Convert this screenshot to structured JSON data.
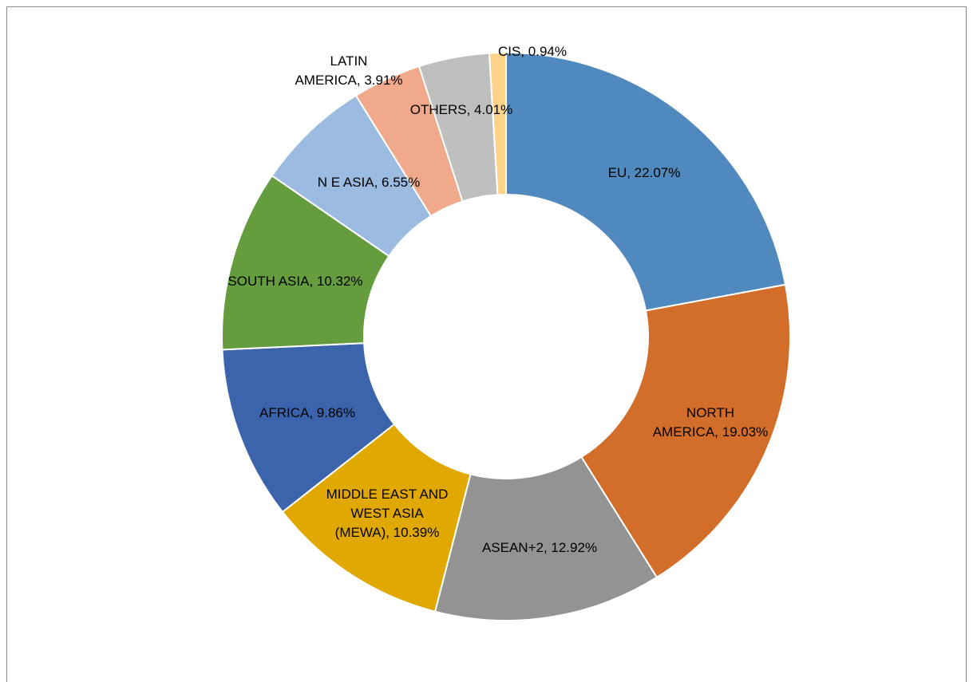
{
  "chart_data": {
    "type": "donut",
    "values": [
      22.07,
      19.03,
      12.92,
      10.39,
      9.86,
      10.32,
      6.55,
      3.91,
      4.01,
      0.94
    ],
    "value_labels": [
      [
        "EU, 22.07%"
      ],
      [
        "NORTH",
        "AMERICA, 19.03%"
      ],
      [
        "ASEAN+2, 12.92%"
      ],
      [
        "MIDDLE EAST AND",
        "WEST ASIA",
        "(MEWA), 10.39%"
      ],
      [
        "AFRICA, 9.86%"
      ],
      [
        "SOUTH ASIA, 10.32%"
      ],
      [
        "N E ASIA, 6.55%"
      ],
      [
        "LATIN",
        "AMERICA, 3.91%"
      ],
      [
        "OTHERS, 4.01%"
      ],
      [
        "CIS, 0.94%"
      ]
    ],
    "colors": [
      "#4f89bd",
      "#d36e2a",
      "#939393",
      "#e0a800",
      "#3c64ad",
      "#659c3e",
      "#9bbbe1",
      "#f0a98a",
      "#bfbfbf",
      "#fdd38a"
    ]
  }
}
